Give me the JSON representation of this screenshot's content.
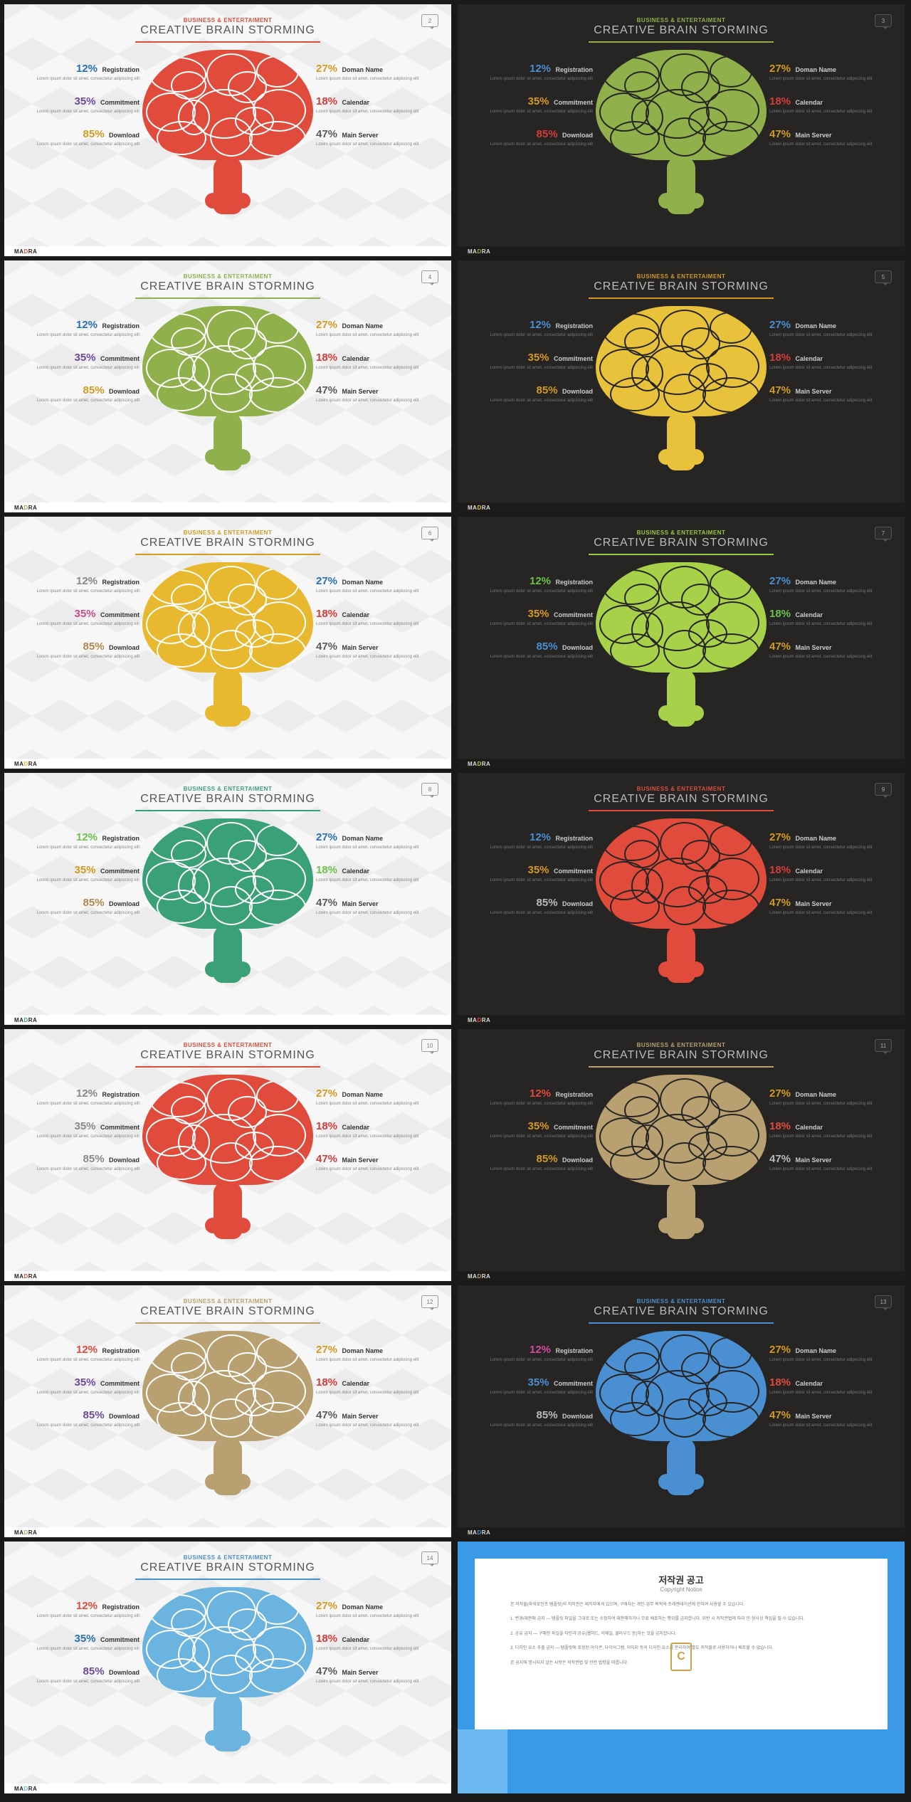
{
  "common": {
    "subhead": "BUSINESS & ENTERTAIMENT",
    "title": "CREATIVE BRAIN STORMING",
    "logo_pre": "MA",
    "logo_mid": "D",
    "logo_post": "RA",
    "desc": "Lorem ipsum dolor sit amet, consectetur adipiscing elit"
  },
  "left_stats": [
    {
      "pct": "12%",
      "label": "Registration"
    },
    {
      "pct": "35%",
      "label": "Commitment"
    },
    {
      "pct": "85%",
      "label": "Download"
    }
  ],
  "right_stats": [
    {
      "pct": "27%",
      "label": "Doman Name"
    },
    {
      "pct": "18%",
      "label": "Calendar"
    },
    {
      "pct": "47%",
      "label": "Main Server"
    }
  ],
  "slides": [
    {
      "num": "2",
      "theme": "light",
      "subhead_color": "#e14b3b",
      "underline": "#e14b3b",
      "brain": "#e14b3b",
      "wrinkle": "#ffffff",
      "left_pct_colors": [
        "#2a6fb5",
        "#6b4a9a",
        "#d49a1f"
      ],
      "right_pct_colors": [
        "#d49a1f",
        "#d43b3b",
        "#5a5a5a"
      ]
    },
    {
      "num": "3",
      "theme": "dark",
      "subhead_color": "#8fb04a",
      "underline": "#8fb04a",
      "brain": "#8fb04a",
      "wrinkle": "#262524",
      "left_pct_colors": [
        "#4a8fd1",
        "#d49a1f",
        "#d43b3b"
      ],
      "right_pct_colors": [
        "#d49a1f",
        "#d43b3b",
        "#d49a1f"
      ]
    },
    {
      "num": "4",
      "theme": "light",
      "subhead_color": "#8fb04a",
      "underline": "#8fb04a",
      "brain": "#8fb04a",
      "wrinkle": "#ffffff",
      "left_pct_colors": [
        "#2a6fb5",
        "#6b4a9a",
        "#d49a1f"
      ],
      "right_pct_colors": [
        "#d49a1f",
        "#d43b3b",
        "#5a5a5a"
      ]
    },
    {
      "num": "5",
      "theme": "dark",
      "subhead_color": "#d49a1f",
      "underline": "#d49a1f",
      "brain": "#e8c23b",
      "wrinkle": "#262524",
      "left_pct_colors": [
        "#4a8fd1",
        "#d49a1f",
        "#d49a1f"
      ],
      "right_pct_colors": [
        "#4a8fd1",
        "#d43b3b",
        "#d49a1f"
      ]
    },
    {
      "num": "6",
      "theme": "light",
      "subhead_color": "#d49a1f",
      "underline": "#d49a1f",
      "brain": "#e8b82e",
      "wrinkle": "#ffffff",
      "left_pct_colors": [
        "#888888",
        "#c94a8a",
        "#b08850"
      ],
      "right_pct_colors": [
        "#2a6fb5",
        "#d43b3b",
        "#5a5a5a"
      ]
    },
    {
      "num": "7",
      "theme": "dark",
      "subhead_color": "#9cc93b",
      "underline": "#9cc93b",
      "brain": "#a8d14a",
      "wrinkle": "#262524",
      "left_pct_colors": [
        "#6cc24a",
        "#d49a1f",
        "#4a8fd1"
      ],
      "right_pct_colors": [
        "#4a8fd1",
        "#6cc24a",
        "#d49a1f"
      ]
    },
    {
      "num": "8",
      "theme": "light",
      "subhead_color": "#3aa078",
      "underline": "#3aa078",
      "brain": "#3aa078",
      "wrinkle": "#ffffff",
      "left_pct_colors": [
        "#6cc24a",
        "#d49a1f",
        "#b08850"
      ],
      "right_pct_colors": [
        "#2a6fb5",
        "#6cc24a",
        "#5a5a5a"
      ]
    },
    {
      "num": "9",
      "theme": "dark",
      "subhead_color": "#e14b3b",
      "underline": "#e14b3b",
      "brain": "#e14b3b",
      "wrinkle": "#262524",
      "left_pct_colors": [
        "#4a8fd1",
        "#d49a1f",
        "#bbbbbb"
      ],
      "right_pct_colors": [
        "#d49a1f",
        "#d43b3b",
        "#d49a1f"
      ]
    },
    {
      "num": "10",
      "theme": "light",
      "subhead_color": "#e14b3b",
      "underline": "#e14b3b",
      "brain": "#e14b3b",
      "wrinkle": "#ffffff",
      "left_pct_colors": [
        "#888888",
        "#888888",
        "#888888"
      ],
      "right_pct_colors": [
        "#d49a1f",
        "#d43b3b",
        "#d43b3b"
      ]
    },
    {
      "num": "11",
      "theme": "dark",
      "subhead_color": "#b8a070",
      "underline": "#b8a070",
      "brain": "#b8a070",
      "wrinkle": "#262524",
      "left_pct_colors": [
        "#e14b3b",
        "#d49a1f",
        "#d49a1f"
      ],
      "right_pct_colors": [
        "#d49a1f",
        "#e14b3b",
        "#bbbbbb"
      ]
    },
    {
      "num": "12",
      "theme": "light",
      "subhead_color": "#b8a070",
      "underline": "#b8a070",
      "brain": "#b8a070",
      "wrinkle": "#ffffff",
      "left_pct_colors": [
        "#e14b3b",
        "#6b4a9a",
        "#6b4a9a"
      ],
      "right_pct_colors": [
        "#d49a1f",
        "#d43b3b",
        "#5a5a5a"
      ]
    },
    {
      "num": "13",
      "theme": "dark",
      "subhead_color": "#4a8fd1",
      "underline": "#4a8fd1",
      "brain": "#4a8fd1",
      "wrinkle": "#262524",
      "left_pct_colors": [
        "#d14aa0",
        "#4a8fd1",
        "#bbbbbb"
      ],
      "right_pct_colors": [
        "#d49a1f",
        "#e14b3b",
        "#d49a1f"
      ]
    },
    {
      "num": "14",
      "theme": "light",
      "subhead_color": "#4a8fd1",
      "underline": "#4a8fd1",
      "brain": "#6bb4e0",
      "wrinkle": "#ffffff",
      "left_pct_colors": [
        "#e14b3b",
        "#2a6fb5",
        "#6b4a9a"
      ],
      "right_pct_colors": [
        "#d49a1f",
        "#d43b3b",
        "#5a5a5a"
      ]
    }
  ],
  "copyright": {
    "title_kr": "저작권 공고",
    "title_en": "Copyright Notice",
    "body": "본 저작물(파워포인트 템플릿)의 저작권은 제작자에게 있으며, 구매자는 개인·업무 목적의 프레젠테이션에 한하여 사용할 수 있습니다.\n\n1. 변경/재판매 금지 — 템플릿 파일을 그대로 또는 수정하여 재판매하거나 무료 배포하는 행위를 금지합니다. 위반 시 저작권법에 따라 민·형사상 책임을 질 수 있습니다.\n\n2. 공유 금지 — 구매한 파일을 타인과 공유(웹하드, 이메일, 클라우드 등)하는 것을 금지합니다.\n\n3. 디자인 요소 추출 금지 — 템플릿에 포함된 아이콘, 다이어그램, 이미지 등의 디자인 요소를 분리하여 별도 저작물로 사용하거나 배포할 수 없습니다.\n\n본 공지에 명시되지 않은 사항은 저작권법 및 관련 법령을 따릅니다."
  }
}
